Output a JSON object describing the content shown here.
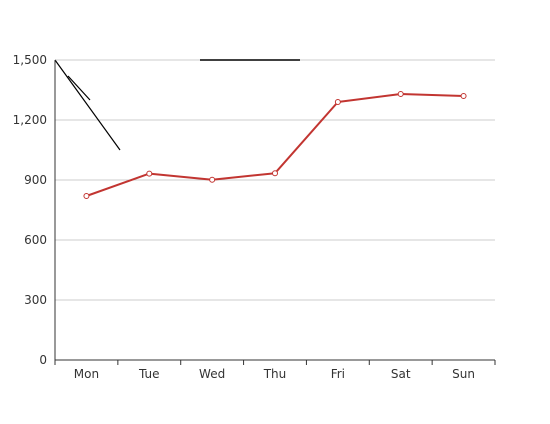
{
  "chart_data": {
    "type": "line",
    "categories": [
      "Mon",
      "Tue",
      "Wed",
      "Thu",
      "Fri",
      "Sat",
      "Sun"
    ],
    "series": [
      {
        "values": [
          820,
          932,
          901,
          934,
          1290,
          1330,
          1320
        ]
      }
    ],
    "ylim": [
      0,
      1500
    ],
    "y_ticks": [
      0,
      300,
      600,
      900,
      1200,
      1500
    ],
    "y_tick_labels": [
      "0",
      "300",
      "600",
      "900",
      "1,200",
      "1,500"
    ],
    "grid": true,
    "legend": "none",
    "title": "",
    "xlabel": "",
    "ylabel": ""
  },
  "colors": {
    "series_line": "#c23531",
    "series_point_fill": "#ffffff",
    "axis": "#333333",
    "grid": "#cccccc",
    "text": "#333333",
    "annotation": "#000000"
  }
}
